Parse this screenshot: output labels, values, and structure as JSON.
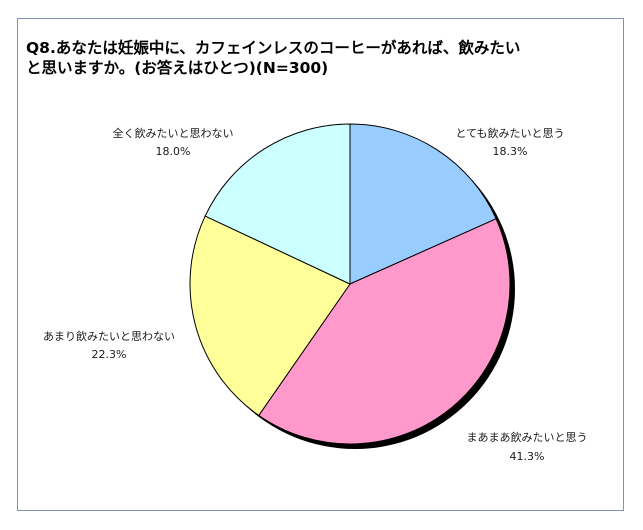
{
  "chart_data": {
    "type": "pie",
    "title_lines": [
      "Q8.あなたは妊娠中に、カフェインレスのコーヒーがあれば、飲みたい",
      "と思いますか。(お答えはひとつ)(N=300)"
    ],
    "slices": [
      {
        "label": "とても飲みたいと思う",
        "value_label": "18.3%",
        "value": 18.3,
        "color": "#99ccff"
      },
      {
        "label": "まあまあ飲みたいと思う",
        "value_label": "41.3%",
        "value": 41.3,
        "color": "#ff99cc"
      },
      {
        "label": "あまり飲みたいと思わない",
        "value_label": "22.3%",
        "value": 22.3,
        "color": "#ffff99"
      },
      {
        "label": "全く飲みたいと思わない",
        "value_label": "18.0%",
        "value": 18.0,
        "color": "#ccffff"
      }
    ],
    "start_angle": "12 o'clock",
    "direction": "clockwise",
    "legend": "none",
    "label_placement": "outside"
  }
}
